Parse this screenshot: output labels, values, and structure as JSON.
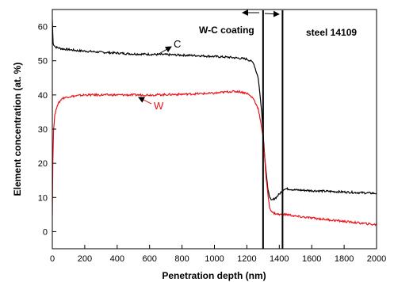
{
  "chart_data": {
    "type": "line",
    "title": "",
    "xlabel": "Penetration depth (nm)",
    "ylabel": "Element concentration (at. %)",
    "xlim": [
      0,
      2000
    ],
    "ylim": [
      -5,
      65
    ],
    "xticks": [
      0,
      200,
      400,
      600,
      800,
      1000,
      1200,
      1400,
      1600,
      1800,
      2000
    ],
    "yticks": [
      0,
      10,
      20,
      30,
      40,
      50,
      60
    ],
    "grid": false,
    "series": [
      {
        "name": "C",
        "color": "#000000",
        "x": [
          0,
          5,
          20,
          60,
          150,
          300,
          500,
          700,
          900,
          1100,
          1200,
          1240,
          1270,
          1290,
          1310,
          1330,
          1350,
          1380,
          1400,
          1430,
          1460,
          1500,
          1600,
          1700,
          1800,
          1900,
          2000
        ],
        "y": [
          62,
          55,
          54,
          53.5,
          53,
          52.5,
          52,
          51.8,
          51.5,
          51,
          50.5,
          49.5,
          45,
          36,
          22,
          12,
          9,
          10,
          11,
          12.5,
          12.5,
          12.2,
          12,
          11.8,
          11.6,
          11.4,
          11.2
        ]
      },
      {
        "name": "W",
        "color": "#e8141b",
        "x": [
          0,
          3,
          8,
          15,
          30,
          60,
          100,
          200,
          400,
          600,
          800,
          1000,
          1100,
          1150,
          1200,
          1240,
          1270,
          1300,
          1320,
          1340,
          1360,
          1400,
          1450,
          1500,
          1600,
          1700,
          1800,
          1900,
          2000
        ],
        "y": [
          5,
          20,
          30,
          34,
          37,
          39,
          39.5,
          40,
          40,
          40,
          40.2,
          40.5,
          41,
          41,
          40.5,
          39,
          36,
          28,
          15,
          7,
          5.5,
          5,
          5,
          4.5,
          4,
          3.5,
          3,
          2.5,
          2
        ]
      }
    ],
    "series_labels": [
      "C",
      "W"
    ],
    "interface_lines": [
      1300,
      1420
    ],
    "annotations": {
      "coating_label": "W-C coating",
      "substrate_label": "steel 14109"
    }
  }
}
